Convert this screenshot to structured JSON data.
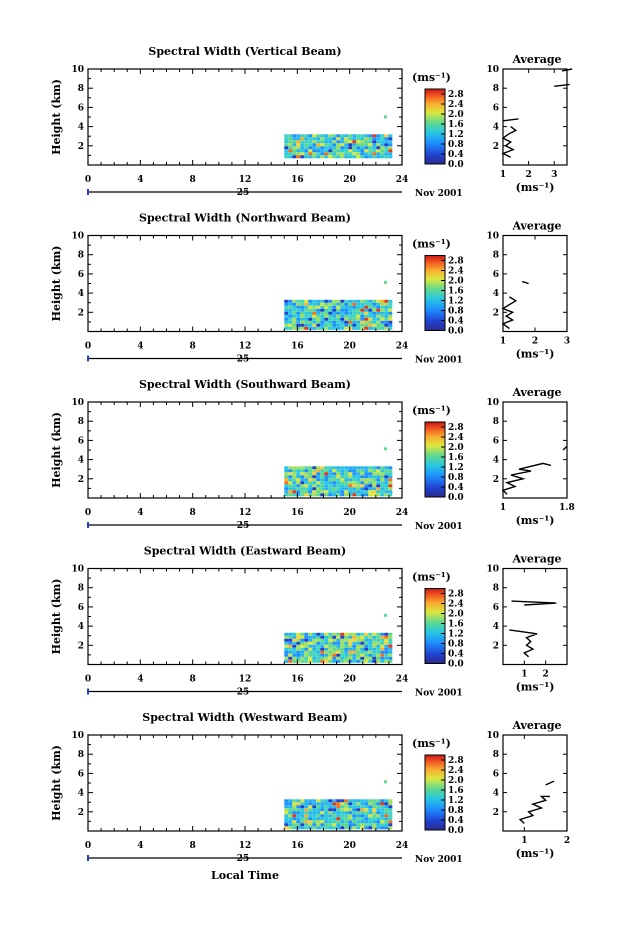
{
  "figure": {
    "x_axis_label": "Local Time",
    "date_label": "Nov 2001",
    "day_label": "25",
    "colorbar_unit": "(ms⁻¹)",
    "average_title": "Average",
    "average_unit": "(ms⁻¹)",
    "ylabel": "Height (km)"
  },
  "chart_data": [
    {
      "type": "heatmap",
      "title": "Spectral Width (Vertical Beam)",
      "ylabel": "Height (km)",
      "xlabel": "Local Time",
      "x_ticks": [
        0,
        4,
        8,
        12,
        16,
        20,
        24
      ],
      "xlim": [
        0,
        24
      ],
      "y_ticks": [
        2,
        4,
        6,
        8,
        10
      ],
      "ylim": [
        0,
        10
      ],
      "data_extent": {
        "x": [
          15,
          23
        ],
        "y": [
          0.9,
          3.2
        ]
      },
      "colorbar_ticks": [
        0.0,
        0.4,
        0.8,
        1.2,
        1.6,
        2.0,
        2.4,
        2.8
      ],
      "colorbar_range": [
        0,
        3
      ],
      "average": {
        "title": "Average",
        "xlim": [
          1,
          3.5
        ],
        "x_ticks": [
          1,
          2,
          3
        ],
        "ylim": [
          0,
          10
        ],
        "y_ticks": [
          2,
          4,
          6,
          8,
          10
        ],
        "profile": [
          [
            1.3,
            0.8
          ],
          [
            1.0,
            1.2
          ],
          [
            1.4,
            1.6
          ],
          [
            1.1,
            2.0
          ],
          [
            1.3,
            2.4
          ],
          [
            1.0,
            2.8
          ],
          [
            1.2,
            3.2
          ],
          [
            1.5,
            3.6
          ],
          [
            1.3,
            4.0
          ],
          [
            null,
            null
          ],
          [
            1.0,
            4.6
          ],
          [
            1.6,
            4.8
          ],
          [
            null,
            null
          ],
          [
            3.0,
            8.2
          ],
          [
            3.6,
            8.4
          ],
          [
            null,
            null
          ],
          [
            3.3,
            9.8
          ],
          [
            3.7,
            10.0
          ]
        ]
      }
    },
    {
      "type": "heatmap",
      "title": "Spectral Width (Northward Beam)",
      "ylabel": "Height (km)",
      "xlabel": "Local Time",
      "x_ticks": [
        0,
        4,
        8,
        12,
        16,
        20,
        24
      ],
      "xlim": [
        0,
        24
      ],
      "y_ticks": [
        2,
        4,
        6,
        8,
        10
      ],
      "ylim": [
        0,
        10
      ],
      "data_extent": {
        "x": [
          15,
          23
        ],
        "y": [
          0.3,
          3.3
        ]
      },
      "colorbar_ticks": [
        0.0,
        0.4,
        0.8,
        1.2,
        1.6,
        2.0,
        2.4,
        2.8
      ],
      "colorbar_range": [
        0,
        3
      ],
      "average": {
        "title": "Average",
        "xlim": [
          1,
          3
        ],
        "x_ticks": [
          1,
          2,
          3
        ],
        "ylim": [
          0,
          10
        ],
        "y_ticks": [
          2,
          4,
          6,
          8,
          10
        ],
        "profile": [
          [
            1.2,
            0.3
          ],
          [
            1.0,
            0.8
          ],
          [
            1.3,
            1.2
          ],
          [
            1.1,
            1.6
          ],
          [
            1.3,
            2.0
          ],
          [
            1.0,
            2.4
          ],
          [
            1.2,
            2.8
          ],
          [
            1.4,
            3.2
          ],
          [
            1.2,
            3.6
          ],
          [
            null,
            null
          ],
          [
            1.6,
            5.2
          ],
          [
            1.8,
            5.0
          ]
        ]
      }
    },
    {
      "type": "heatmap",
      "title": "Spectral Width (Southward Beam)",
      "ylabel": "Height (km)",
      "xlabel": "Local Time",
      "x_ticks": [
        0,
        4,
        8,
        12,
        16,
        20,
        24
      ],
      "xlim": [
        0,
        24
      ],
      "y_ticks": [
        2,
        4,
        6,
        8,
        10
      ],
      "ylim": [
        0,
        10
      ],
      "data_extent": {
        "x": [
          15,
          23
        ],
        "y": [
          0.3,
          3.3
        ]
      },
      "colorbar_ticks": [
        0.0,
        0.4,
        0.8,
        1.2,
        1.6,
        2.0,
        2.4,
        2.8
      ],
      "colorbar_range": [
        0,
        3
      ],
      "average": {
        "title": "Average",
        "xlim": [
          1.0,
          1.8
        ],
        "x_ticks": [
          1.0,
          1.8
        ],
        "ylim": [
          0,
          10
        ],
        "y_ticks": [
          2,
          4,
          6,
          8,
          10
        ],
        "profile": [
          [
            1.05,
            0.4
          ],
          [
            1.0,
            0.8
          ],
          [
            1.15,
            1.2
          ],
          [
            1.05,
            1.6
          ],
          [
            1.25,
            2.0
          ],
          [
            1.1,
            2.4
          ],
          [
            1.35,
            2.8
          ],
          [
            1.2,
            3.0
          ],
          [
            1.5,
            3.6
          ],
          [
            1.6,
            3.4
          ],
          [
            null,
            null
          ],
          [
            1.75,
            5.0
          ],
          [
            1.8,
            5.4
          ]
        ]
      }
    },
    {
      "type": "heatmap",
      "title": "Spectral Width (Eastward Beam)",
      "ylabel": "Height (km)",
      "xlabel": "Local Time",
      "x_ticks": [
        0,
        4,
        8,
        12,
        16,
        20,
        24
      ],
      "xlim": [
        0,
        24
      ],
      "y_ticks": [
        2,
        4,
        6,
        8,
        10
      ],
      "ylim": [
        0,
        10
      ],
      "data_extent": {
        "x": [
          15,
          23
        ],
        "y": [
          0.3,
          3.3
        ]
      },
      "colorbar_ticks": [
        0.0,
        0.4,
        0.8,
        1.2,
        1.6,
        2.0,
        2.4,
        2.8
      ],
      "colorbar_range": [
        0,
        3
      ],
      "average": {
        "title": "Average",
        "xlim": [
          0,
          3
        ],
        "x_ticks": [
          1,
          2
        ],
        "ylim": [
          0,
          10
        ],
        "y_ticks": [
          2,
          4,
          6,
          8,
          10
        ],
        "profile": [
          [
            1.2,
            0.8
          ],
          [
            1.0,
            1.2
          ],
          [
            1.4,
            1.6
          ],
          [
            1.1,
            2.0
          ],
          [
            1.3,
            2.4
          ],
          [
            1.1,
            2.8
          ],
          [
            1.6,
            3.2
          ],
          [
            0.3,
            3.6
          ],
          [
            null,
            null
          ],
          [
            0.4,
            6.6
          ],
          [
            2.5,
            6.4
          ],
          [
            1.0,
            6.2
          ]
        ]
      }
    },
    {
      "type": "heatmap",
      "title": "Spectral Width (Westward Beam)",
      "ylabel": "Height (km)",
      "xlabel": "Local Time",
      "x_ticks": [
        0,
        4,
        8,
        12,
        16,
        20,
        24
      ],
      "xlim": [
        0,
        24
      ],
      "y_ticks": [
        2,
        4,
        6,
        8,
        10
      ],
      "ylim": [
        0,
        10
      ],
      "data_extent": {
        "x": [
          15,
          23
        ],
        "y": [
          0.3,
          3.3
        ]
      },
      "colorbar_ticks": [
        0.0,
        0.4,
        0.8,
        1.2,
        1.6,
        2.0,
        2.4,
        2.8
      ],
      "colorbar_range": [
        0,
        3
      ],
      "average": {
        "title": "Average",
        "xlim": [
          0.5,
          2
        ],
        "x_ticks": [
          1,
          2
        ],
        "ylim": [
          0,
          10
        ],
        "y_ticks": [
          2,
          4,
          6,
          8,
          10
        ],
        "profile": [
          [
            1.0,
            0.8
          ],
          [
            0.9,
            1.2
          ],
          [
            1.2,
            1.6
          ],
          [
            1.1,
            2.0
          ],
          [
            1.4,
            2.4
          ],
          [
            1.2,
            2.8
          ],
          [
            1.5,
            3.2
          ],
          [
            1.4,
            3.6
          ],
          [
            1.6,
            3.6
          ],
          [
            null,
            null
          ],
          [
            1.5,
            4.8
          ],
          [
            1.7,
            5.2
          ]
        ]
      }
    }
  ]
}
